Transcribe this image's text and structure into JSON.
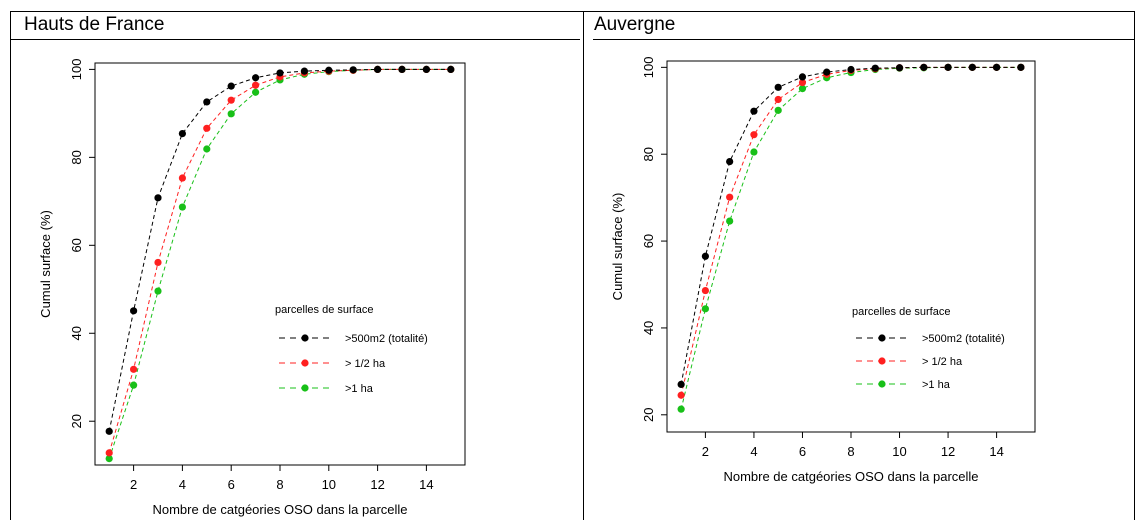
{
  "panels": [
    {
      "title": "Hauts de France"
    },
    {
      "title": "Auvergne"
    }
  ],
  "colors": {
    "black": "#000000",
    "red": "#ff2020",
    "green": "#18c018"
  },
  "chart_data": [
    {
      "type": "line",
      "title": "Hauts de France",
      "xlabel": "Nombre de catgéories OSO dans la parcelle",
      "ylabel": "Cumul surface (%)",
      "xlim": [
        0.5,
        15.5
      ],
      "ylim": [
        10.5,
        101
      ],
      "x_ticks": [
        2,
        4,
        6,
        8,
        10,
        12,
        14
      ],
      "y_ticks": [
        20,
        40,
        60,
        80,
        100
      ],
      "legend_title": "parcelles de surface",
      "legend_position": "bottom-right",
      "x": [
        1,
        2,
        3,
        4,
        5,
        6,
        7,
        8,
        9,
        10,
        11,
        12,
        13,
        14,
        15
      ],
      "series": [
        {
          "name": ">500m2  (totalité)",
          "color": "#000000",
          "values": [
            17.7,
            45.1,
            70.8,
            85.4,
            92.6,
            96.2,
            98.1,
            99.2,
            99.6,
            99.8,
            99.9,
            100,
            100,
            100,
            100
          ]
        },
        {
          "name": "> 1/2 ha",
          "color": "#ff2020",
          "values": [
            12.8,
            31.8,
            56.1,
            75.3,
            86.6,
            93.0,
            96.4,
            98.3,
            99.2,
            99.6,
            99.8,
            100,
            100,
            100,
            100
          ]
        },
        {
          "name": ">1 ha",
          "color": "#18c018",
          "values": [
            11.5,
            28.2,
            49.6,
            68.7,
            81.9,
            89.9,
            94.8,
            97.6,
            98.9,
            99.5,
            99.8,
            100,
            100,
            100,
            100
          ]
        }
      ]
    },
    {
      "type": "line",
      "title": "Auvergne",
      "xlabel": "Nombre de catgéories OSO dans la parcelle",
      "ylabel": "Cumul surface (%)",
      "xlim": [
        0.5,
        15.5
      ],
      "ylim": [
        16.5,
        101
      ],
      "x_ticks": [
        2,
        4,
        6,
        8,
        10,
        12,
        14
      ],
      "y_ticks": [
        20,
        40,
        60,
        80,
        100
      ],
      "legend_title": "parcelles de surface",
      "legend_position": "bottom-right",
      "x": [
        1,
        2,
        3,
        4,
        5,
        6,
        7,
        8,
        9,
        10,
        11,
        12,
        13,
        14,
        15
      ],
      "series": [
        {
          "name": ">500m2  (totalité)",
          "color": "#000000",
          "values": [
            27.0,
            56.5,
            78.3,
            89.9,
            95.4,
            97.8,
            98.9,
            99.5,
            99.8,
            99.9,
            100,
            100,
            100,
            100,
            100
          ]
        },
        {
          "name": " > 1/2 ha",
          "color": "#ff2020",
          "values": [
            24.5,
            48.6,
            70.1,
            84.5,
            92.6,
            96.5,
            98.4,
            99.3,
            99.7,
            99.9,
            100,
            100,
            100,
            100,
            100
          ]
        },
        {
          "name": ">1 ha",
          "color": "#18c018",
          "values": [
            21.3,
            44.4,
            64.6,
            80.5,
            90.1,
            95.1,
            97.6,
            98.8,
            99.5,
            99.8,
            99.9,
            100,
            100,
            100,
            100
          ]
        }
      ]
    }
  ]
}
